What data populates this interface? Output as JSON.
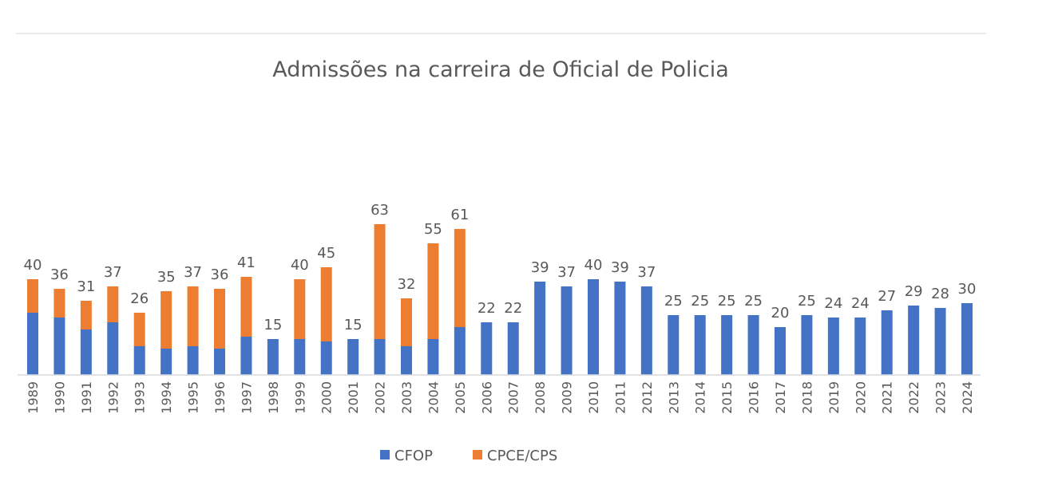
{
  "chart_data": {
    "type": "bar",
    "stacked": true,
    "title": "Admissões na carreira de Oficial de Policia",
    "xlabel": "",
    "ylabel": "",
    "ylim": [
      0,
      70
    ],
    "grid": false,
    "legend_position": "bottom",
    "categories": [
      "1989",
      "1990",
      "1991",
      "1992",
      "1993",
      "1994",
      "1995",
      "1996",
      "1997",
      "1998",
      "1999",
      "2000",
      "2001",
      "2002",
      "2003",
      "2004",
      "2005",
      "2006",
      "2007",
      "2008",
      "2009",
      "2010",
      "2011",
      "2012",
      "2013",
      "2014",
      "2015",
      "2016",
      "2017",
      "2018",
      "2019",
      "2020",
      "2021",
      "2022",
      "2023",
      "2024"
    ],
    "series": [
      {
        "name": "CFOP",
        "color": "#4472C4",
        "values": [
          26,
          24,
          19,
          22,
          12,
          11,
          12,
          11,
          16,
          15,
          15,
          14,
          15,
          15,
          12,
          15,
          20,
          22,
          22,
          39,
          37,
          40,
          39,
          37,
          25,
          25,
          25,
          25,
          20,
          25,
          24,
          24,
          27,
          29,
          28,
          30
        ]
      },
      {
        "name": "CPCE/CPS",
        "color": "#ED7D31",
        "values": [
          14,
          12,
          12,
          15,
          14,
          24,
          25,
          25,
          25,
          0,
          25,
          31,
          0,
          48,
          20,
          40,
          41,
          0,
          0,
          0,
          0,
          0,
          0,
          0,
          0,
          0,
          0,
          0,
          0,
          0,
          0,
          0,
          0,
          0,
          0,
          0
        ]
      }
    ],
    "totals": [
      40,
      36,
      31,
      37,
      26,
      35,
      37,
      36,
      41,
      15,
      40,
      45,
      15,
      63,
      32,
      55,
      61,
      22,
      22,
      39,
      37,
      40,
      39,
      37,
      25,
      25,
      25,
      25,
      20,
      25,
      24,
      24,
      27,
      29,
      28,
      30
    ]
  }
}
